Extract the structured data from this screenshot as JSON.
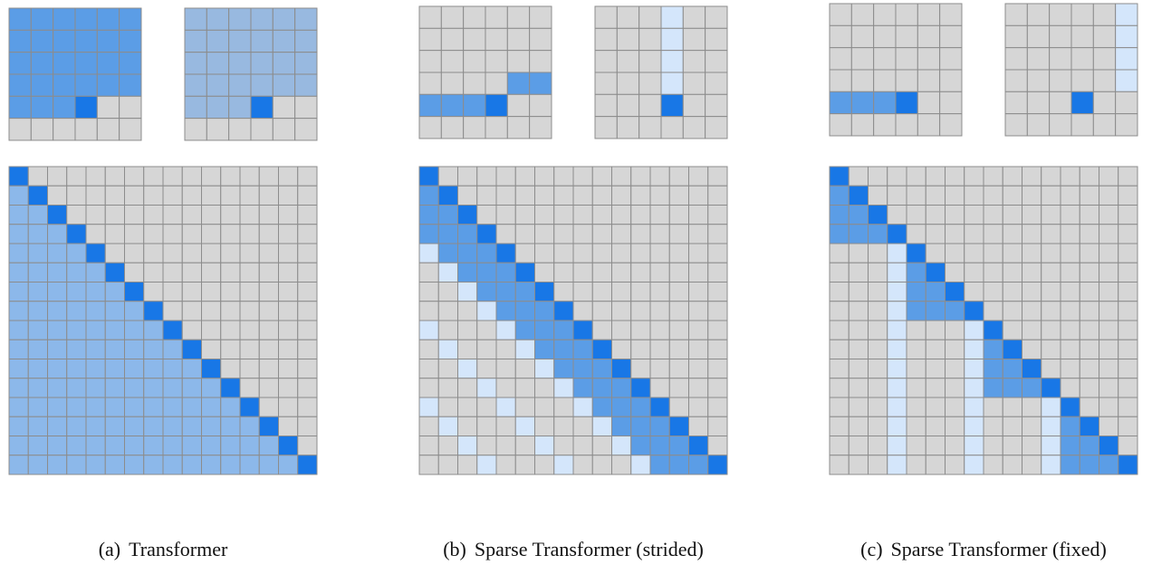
{
  "colors": {
    "empty": "#d6d6d6",
    "query": "#1877e6",
    "attended": "#5b9de6",
    "dense_light": "#8cb8ea",
    "dense_small": "#98b9e0",
    "column": "#d4e6fb",
    "gridline": "#8c8c8c"
  },
  "panels": [
    {
      "tag": "(a)",
      "title": "Transformer",
      "pattern": "dense",
      "small_grids": [
        {
          "name": "step-pattern",
          "current": [
            4,
            3
          ],
          "fill": "all-before"
        },
        {
          "name": "head-pattern",
          "current": [
            4,
            3
          ],
          "fill": "all-before"
        }
      ],
      "matrix_size": 16
    },
    {
      "tag": "(b)",
      "title": "Sparse Transformer (strided)",
      "pattern": "strided",
      "stride": 4,
      "small_grids": [
        {
          "name": "local-head",
          "current": [
            4,
            3
          ],
          "fill": "previous-in-stride"
        },
        {
          "name": "strided-head",
          "current": [
            4,
            3
          ],
          "fill": "column"
        }
      ],
      "matrix_size": 16
    },
    {
      "tag": "(c)",
      "title": "Sparse Transformer (fixed)",
      "pattern": "fixed",
      "block": 4,
      "small_grids": [
        {
          "name": "block-head",
          "current": [
            4,
            3
          ],
          "fill": "block"
        },
        {
          "name": "summary-head",
          "current": [
            4,
            3
          ],
          "fill": "summary-column"
        }
      ],
      "matrix_size": 16
    }
  ]
}
